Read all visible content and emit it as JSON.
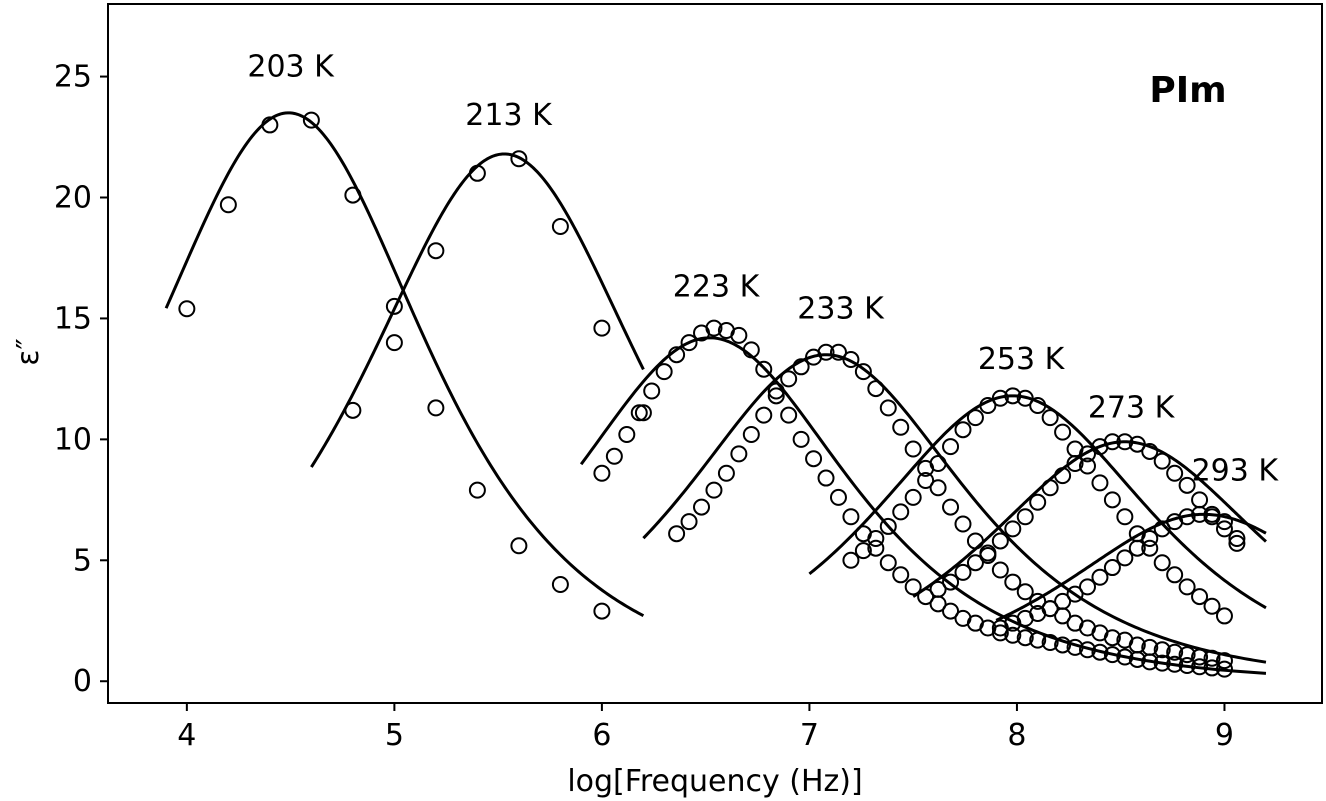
{
  "chart_data": {
    "type": "line",
    "panel_label": "PIm",
    "xlabel": "log[Frequency (Hz)]",
    "ylabel": "ε″",
    "xlim": [
      3.62,
      9.47
    ],
    "ylim": [
      -0.9,
      28.0
    ],
    "xticks": [
      4,
      5,
      6,
      7,
      8,
      9
    ],
    "yticks": [
      0,
      5,
      10,
      15,
      20,
      25
    ],
    "grid": false,
    "legend": "none",
    "marker_style": "open-circle",
    "line_color": "#000000",
    "series": [
      {
        "label": "203 K",
        "label_pos": [
          4.5,
          25.0
        ],
        "fit": {
          "peak_x": 4.49,
          "peak_y": 23.5,
          "width": 0.6
        },
        "x_range": [
          3.9,
          6.2
        ],
        "points": [
          [
            4.0,
            15.4
          ],
          [
            4.2,
            19.7
          ],
          [
            4.4,
            23.0
          ],
          [
            4.6,
            23.2
          ],
          [
            4.8,
            20.1
          ],
          [
            5.0,
            15.5
          ],
          [
            5.2,
            11.3
          ],
          [
            5.4,
            7.9
          ],
          [
            5.6,
            5.6
          ],
          [
            5.8,
            4.0
          ],
          [
            6.0,
            2.9
          ]
        ]
      },
      {
        "label": "213 K",
        "label_pos": [
          5.55,
          23.0
        ],
        "fit": {
          "peak_x": 5.53,
          "peak_y": 21.8,
          "width": 0.6
        },
        "x_range": [
          4.6,
          6.2
        ],
        "points": [
          [
            4.8,
            11.2
          ],
          [
            5.0,
            14.0
          ],
          [
            5.2,
            17.8
          ],
          [
            5.4,
            21.0
          ],
          [
            5.6,
            21.6
          ],
          [
            5.8,
            18.8
          ],
          [
            6.0,
            14.6
          ],
          [
            6.2,
            11.1
          ]
        ]
      },
      {
        "label": "223 K",
        "label_pos": [
          6.55,
          15.9
        ],
        "fit": {
          "peak_x": 6.52,
          "peak_y": 14.2,
          "width": 0.6
        },
        "x_range": [
          5.9,
          9.2
        ],
        "points": [
          [
            6.0,
            8.6
          ],
          [
            6.06,
            9.3
          ],
          [
            6.12,
            10.2
          ],
          [
            6.18,
            11.1
          ],
          [
            6.24,
            12.0
          ],
          [
            6.3,
            12.8
          ],
          [
            6.36,
            13.5
          ],
          [
            6.42,
            14.0
          ],
          [
            6.48,
            14.4
          ],
          [
            6.54,
            14.6
          ],
          [
            6.6,
            14.5
          ],
          [
            6.66,
            14.3
          ],
          [
            6.72,
            13.7
          ],
          [
            6.78,
            12.9
          ],
          [
            6.84,
            12.0
          ],
          [
            6.9,
            11.0
          ],
          [
            6.96,
            10.0
          ],
          [
            7.02,
            9.2
          ],
          [
            7.08,
            8.4
          ],
          [
            7.14,
            7.6
          ],
          [
            7.2,
            6.8
          ],
          [
            7.26,
            6.1
          ],
          [
            7.32,
            5.5
          ],
          [
            7.38,
            4.9
          ],
          [
            7.44,
            4.4
          ],
          [
            7.5,
            3.9
          ],
          [
            7.56,
            3.5
          ],
          [
            7.62,
            3.2
          ],
          [
            7.68,
            2.9
          ],
          [
            7.74,
            2.6
          ],
          [
            7.8,
            2.4
          ],
          [
            7.86,
            2.2
          ],
          [
            7.92,
            2.0
          ],
          [
            7.98,
            1.9
          ],
          [
            8.04,
            1.8
          ],
          [
            8.1,
            1.7
          ],
          [
            8.16,
            1.6
          ],
          [
            8.22,
            1.5
          ],
          [
            8.28,
            1.4
          ],
          [
            8.34,
            1.3
          ],
          [
            8.4,
            1.2
          ],
          [
            8.46,
            1.1
          ],
          [
            8.52,
            1.0
          ],
          [
            8.58,
            0.9
          ],
          [
            8.64,
            0.8
          ],
          [
            8.7,
            0.75
          ],
          [
            8.76,
            0.7
          ],
          [
            8.82,
            0.65
          ],
          [
            8.88,
            0.6
          ],
          [
            8.94,
            0.55
          ],
          [
            9.0,
            0.5
          ]
        ]
      },
      {
        "label": "233 K",
        "label_pos": [
          7.15,
          15.0
        ],
        "fit": {
          "peak_x": 7.08,
          "peak_y": 13.5,
          "width": 0.6
        },
        "x_range": [
          6.2,
          9.2
        ],
        "points": [
          [
            6.36,
            6.1
          ],
          [
            6.42,
            6.6
          ],
          [
            6.48,
            7.2
          ],
          [
            6.54,
            7.9
          ],
          [
            6.6,
            8.6
          ],
          [
            6.66,
            9.4
          ],
          [
            6.72,
            10.2
          ],
          [
            6.78,
            11.0
          ],
          [
            6.84,
            11.8
          ],
          [
            6.9,
            12.5
          ],
          [
            6.96,
            13.0
          ],
          [
            7.02,
            13.4
          ],
          [
            7.08,
            13.6
          ],
          [
            7.14,
            13.6
          ],
          [
            7.2,
            13.3
          ],
          [
            7.26,
            12.8
          ],
          [
            7.32,
            12.1
          ],
          [
            7.38,
            11.3
          ],
          [
            7.44,
            10.5
          ],
          [
            7.5,
            9.6
          ],
          [
            7.56,
            8.8
          ],
          [
            7.62,
            8.0
          ],
          [
            7.68,
            7.2
          ],
          [
            7.74,
            6.5
          ],
          [
            7.8,
            5.8
          ],
          [
            7.86,
            5.2
          ],
          [
            7.92,
            4.6
          ],
          [
            7.98,
            4.1
          ],
          [
            8.04,
            3.7
          ],
          [
            8.1,
            3.3
          ],
          [
            8.16,
            3.0
          ],
          [
            8.22,
            2.7
          ],
          [
            8.28,
            2.4
          ],
          [
            8.34,
            2.2
          ],
          [
            8.4,
            2.0
          ],
          [
            8.46,
            1.8
          ],
          [
            8.52,
            1.7
          ],
          [
            8.58,
            1.5
          ],
          [
            8.64,
            1.4
          ],
          [
            8.7,
            1.3
          ],
          [
            8.76,
            1.2
          ],
          [
            8.82,
            1.1
          ],
          [
            8.88,
            1.0
          ],
          [
            8.94,
            0.95
          ],
          [
            9.0,
            0.85
          ]
        ]
      },
      {
        "label": "253 K",
        "label_pos": [
          8.02,
          12.9
        ],
        "fit": {
          "peak_x": 7.98,
          "peak_y": 11.8,
          "width": 0.6
        },
        "x_range": [
          7.0,
          9.2
        ],
        "points": [
          [
            7.2,
            5.0
          ],
          [
            7.26,
            5.4
          ],
          [
            7.32,
            5.9
          ],
          [
            7.38,
            6.4
          ],
          [
            7.44,
            7.0
          ],
          [
            7.5,
            7.6
          ],
          [
            7.56,
            8.3
          ],
          [
            7.62,
            9.0
          ],
          [
            7.68,
            9.7
          ],
          [
            7.74,
            10.4
          ],
          [
            7.8,
            10.9
          ],
          [
            7.86,
            11.4
          ],
          [
            7.92,
            11.7
          ],
          [
            7.98,
            11.8
          ],
          [
            8.04,
            11.7
          ],
          [
            8.1,
            11.4
          ],
          [
            8.16,
            10.9
          ],
          [
            8.22,
            10.3
          ],
          [
            8.28,
            9.6
          ],
          [
            8.34,
            8.9
          ],
          [
            8.4,
            8.2
          ],
          [
            8.46,
            7.5
          ],
          [
            8.52,
            6.8
          ],
          [
            8.58,
            6.1
          ],
          [
            8.64,
            5.5
          ],
          [
            8.7,
            4.9
          ],
          [
            8.76,
            4.4
          ],
          [
            8.82,
            3.9
          ],
          [
            8.88,
            3.5
          ],
          [
            8.94,
            3.1
          ],
          [
            9.0,
            2.7
          ]
        ]
      },
      {
        "label": "273 K",
        "label_pos": [
          8.55,
          10.9
        ],
        "fit": {
          "peak_x": 8.52,
          "peak_y": 9.9,
          "width": 0.6
        },
        "x_range": [
          7.5,
          9.2
        ],
        "points": [
          [
            7.62,
            3.8
          ],
          [
            7.68,
            4.1
          ],
          [
            7.74,
            4.5
          ],
          [
            7.8,
            4.9
          ],
          [
            7.86,
            5.3
          ],
          [
            7.92,
            5.8
          ],
          [
            7.98,
            6.3
          ],
          [
            8.04,
            6.8
          ],
          [
            8.1,
            7.4
          ],
          [
            8.16,
            8.0
          ],
          [
            8.22,
            8.5
          ],
          [
            8.28,
            9.0
          ],
          [
            8.34,
            9.4
          ],
          [
            8.4,
            9.7
          ],
          [
            8.46,
            9.9
          ],
          [
            8.52,
            9.9
          ],
          [
            8.58,
            9.8
          ],
          [
            8.64,
            9.5
          ],
          [
            8.7,
            9.1
          ],
          [
            8.76,
            8.6
          ],
          [
            8.82,
            8.1
          ],
          [
            8.88,
            7.5
          ],
          [
            8.94,
            6.9
          ],
          [
            9.0,
            6.3
          ],
          [
            9.06,
            5.7
          ]
        ]
      },
      {
        "label": "293 K",
        "label_pos": [
          9.05,
          8.3
        ],
        "fit": {
          "peak_x": 8.9,
          "peak_y": 6.9,
          "width": 0.6
        },
        "x_range": [
          7.9,
          9.2
        ],
        "points": [
          [
            7.92,
            2.2
          ],
          [
            7.98,
            2.4
          ],
          [
            8.04,
            2.6
          ],
          [
            8.1,
            2.8
          ],
          [
            8.16,
            3.0
          ],
          [
            8.22,
            3.3
          ],
          [
            8.28,
            3.6
          ],
          [
            8.34,
            3.9
          ],
          [
            8.4,
            4.3
          ],
          [
            8.46,
            4.7
          ],
          [
            8.52,
            5.1
          ],
          [
            8.58,
            5.5
          ],
          [
            8.64,
            5.9
          ],
          [
            8.7,
            6.3
          ],
          [
            8.76,
            6.6
          ],
          [
            8.82,
            6.8
          ],
          [
            8.88,
            6.9
          ],
          [
            8.94,
            6.8
          ],
          [
            9.0,
            6.6
          ],
          [
            9.06,
            5.9
          ]
        ]
      }
    ]
  }
}
